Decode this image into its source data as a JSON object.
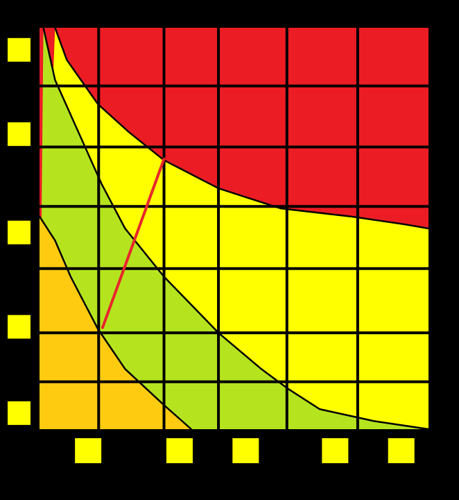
{
  "chart_data": {
    "type": "area",
    "title": "",
    "xlabel": "",
    "ylabel": "",
    "xlim": [
      0,
      1
    ],
    "ylim": [
      0,
      1
    ],
    "grid": true,
    "x_grid_lines": [
      0.152,
      0.32,
      0.46,
      0.636,
      0.818
    ],
    "y_grid_lines": [
      0.118,
      0.24,
      0.4,
      0.555,
      0.703,
      0.855
    ],
    "x_tick_markers": [
      {
        "value": 0.125,
        "label": ""
      },
      {
        "value": 0.36,
        "label": ""
      },
      {
        "value": 0.53,
        "label": ""
      },
      {
        "value": 0.76,
        "label": ""
      },
      {
        "value": 0.93,
        "label": ""
      }
    ],
    "y_tick_markers": [
      {
        "value": 0.04,
        "label": ""
      },
      {
        "value": 0.255,
        "label": ""
      },
      {
        "value": 0.49,
        "label": ""
      },
      {
        "value": 0.735,
        "label": ""
      },
      {
        "value": 0.945,
        "label": ""
      }
    ],
    "zones": [
      {
        "name": "orange-zone",
        "color": "#fecb10"
      },
      {
        "name": "green-zone",
        "color": "#b5e41f"
      },
      {
        "name": "yellow-zone",
        "color": "#ffff00"
      },
      {
        "name": "red-zone",
        "color": "#ec1c24"
      }
    ],
    "series": [
      {
        "name": "orange-green-boundary",
        "points": [
          [
            0,
            0.53
          ],
          [
            0.04,
            0.47
          ],
          [
            0.08,
            0.38
          ],
          [
            0.15,
            0.25
          ],
          [
            0.22,
            0.15
          ],
          [
            0.32,
            0.06
          ],
          [
            0.39,
            0
          ]
        ]
      },
      {
        "name": "green-yellow-boundary",
        "points": [
          [
            0.01,
            1
          ],
          [
            0.04,
            0.87
          ],
          [
            0.1,
            0.74
          ],
          [
            0.16,
            0.61
          ],
          [
            0.22,
            0.5
          ],
          [
            0.32,
            0.38
          ],
          [
            0.46,
            0.24
          ],
          [
            0.57,
            0.15
          ],
          [
            0.64,
            0.1
          ],
          [
            0.72,
            0.05
          ],
          [
            0.86,
            0.02
          ],
          [
            1,
            0
          ]
        ]
      },
      {
        "name": "yellow-red-boundary",
        "points": [
          [
            0.04,
            1
          ],
          [
            0.07,
            0.92
          ],
          [
            0.15,
            0.81
          ],
          [
            0.23,
            0.74
          ],
          [
            0.32,
            0.67
          ],
          [
            0.46,
            0.6
          ],
          [
            0.62,
            0.55
          ],
          [
            0.8,
            0.53
          ],
          [
            0.94,
            0.51
          ],
          [
            1,
            0.5
          ]
        ]
      },
      {
        "name": "red-line",
        "color": "#e8262b",
        "points": [
          [
            0.162,
            0.253
          ],
          [
            0.32,
            0.673
          ]
        ]
      }
    ]
  }
}
